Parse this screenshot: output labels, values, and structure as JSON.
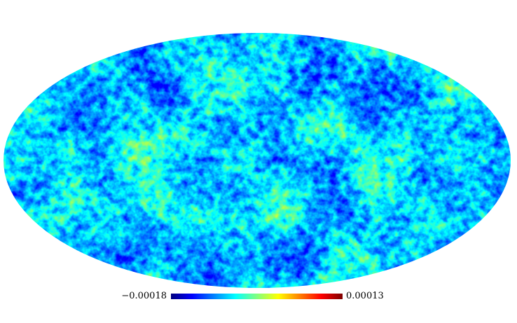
{
  "map": {
    "projection": "mollweide",
    "colormap": {
      "name": "jet",
      "stops": [
        "#00007f",
        "#0000ff",
        "#0080ff",
        "#00ffff",
        "#80ff80",
        "#ffff00",
        "#ff8000",
        "#ff0000",
        "#7f0000"
      ]
    },
    "background_color": "#ffffff"
  },
  "colorbar": {
    "min_label": "−0.00018",
    "max_label": "0.00013"
  }
}
